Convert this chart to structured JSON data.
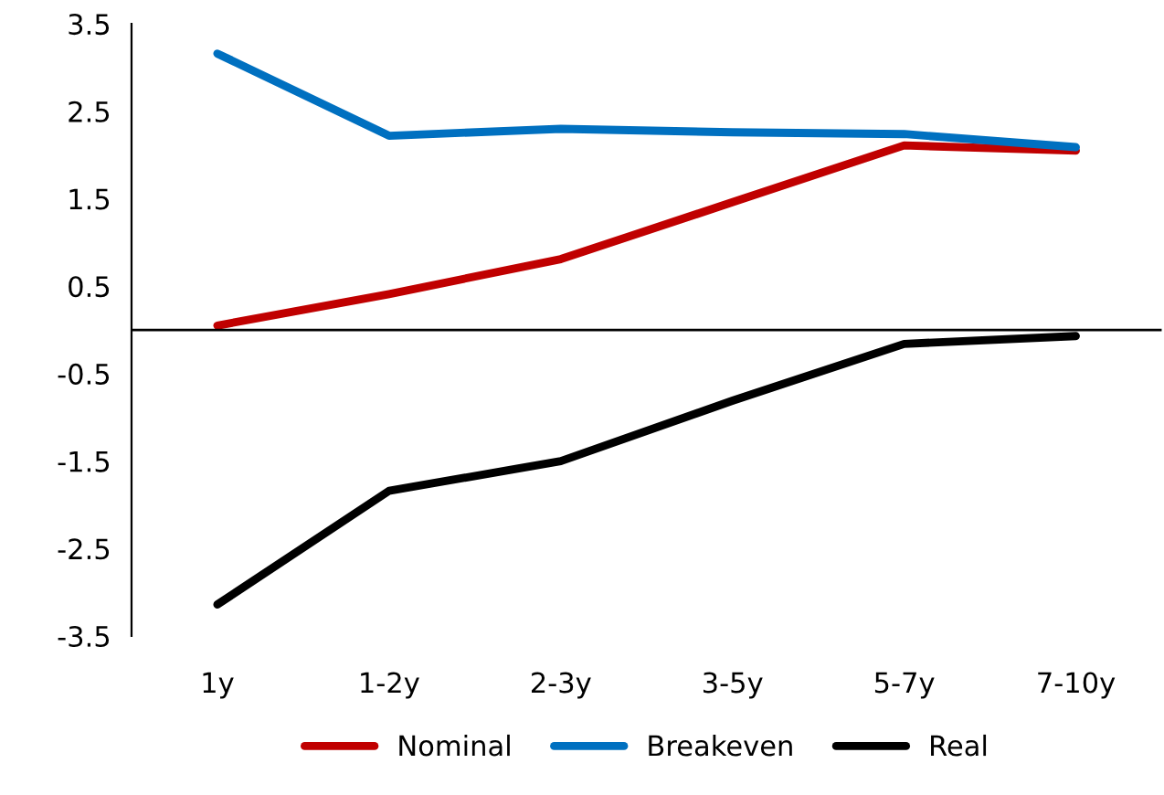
{
  "chart_data": {
    "type": "line",
    "categories": [
      "1y",
      "1-2y",
      "2-3y",
      "3-5y",
      "5-7y",
      "7-10y"
    ],
    "series": [
      {
        "name": "Nominal",
        "color": "#c00000",
        "values": [
          0.05,
          0.41,
          0.81,
          1.46,
          2.11,
          2.05
        ]
      },
      {
        "name": "Breakeven",
        "color": "#0070c0",
        "values": [
          3.16,
          2.22,
          2.3,
          2.26,
          2.24,
          2.09
        ]
      },
      {
        "name": "Real",
        "color": "#000000",
        "values": [
          -3.14,
          -1.84,
          -1.5,
          -0.81,
          -0.16,
          -0.07
        ]
      }
    ],
    "ylim": [
      -3.5,
      3.5
    ],
    "yticks": [
      -3.5,
      -2.5,
      -1.5,
      -0.5,
      0.5,
      1.5,
      2.5,
      3.5
    ],
    "ref_lines": [
      {
        "axis": "y",
        "value": 0,
        "color": "#000000"
      }
    ],
    "grid": false,
    "legend": "bottom",
    "marker": "none",
    "line_style": "solid"
  }
}
